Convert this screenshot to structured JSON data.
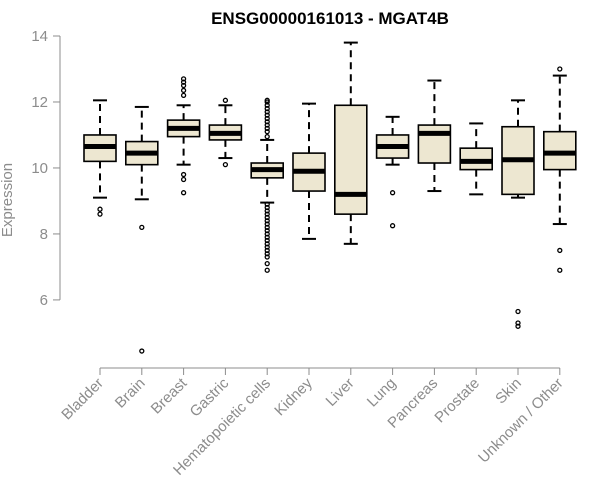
{
  "chart_data": {
    "type": "boxplot",
    "title": "ENSG00000161013 - MGAT4B",
    "xlabel": "",
    "ylabel": "Expression",
    "ylim": [
      4.3,
      14.0
    ],
    "yticks": [
      6,
      8,
      10,
      12,
      14
    ],
    "grid": false,
    "legend": "none",
    "box_fill": "#ede7d1",
    "box_stroke": "#000000",
    "categories": [
      "Bladder",
      "Brain",
      "Breast",
      "Gastric",
      "Hematopoietic cells",
      "Kidney",
      "Liver",
      "Lung",
      "Pancreas",
      "Prostate",
      "Skin",
      "Unknown / Other"
    ],
    "boxes": [
      {
        "category": "Bladder",
        "whisker_low": 9.1,
        "q1": 10.2,
        "median": 10.65,
        "q3": 11.0,
        "whisker_high": 12.05,
        "outliers": [
          8.6,
          8.75
        ]
      },
      {
        "category": "Brain",
        "whisker_low": 9.05,
        "q1": 10.1,
        "median": 10.45,
        "q3": 10.8,
        "whisker_high": 11.85,
        "outliers": [
          8.2,
          4.45
        ]
      },
      {
        "category": "Breast",
        "whisker_low": 10.1,
        "q1": 10.95,
        "median": 11.2,
        "q3": 11.45,
        "whisker_high": 11.9,
        "outliers": [
          12.2,
          12.35,
          12.5,
          12.6,
          12.7,
          9.8,
          9.65,
          9.25
        ]
      },
      {
        "category": "Gastric",
        "whisker_low": 10.3,
        "q1": 10.85,
        "median": 11.05,
        "q3": 11.3,
        "whisker_high": 11.9,
        "outliers": [
          12.05,
          10.1
        ]
      },
      {
        "category": "Hematopoietic cells",
        "whisker_low": 8.95,
        "q1": 9.7,
        "median": 9.95,
        "q3": 10.15,
        "whisker_high": 10.85,
        "outliers": [
          10.95,
          11.1,
          11.2,
          11.3,
          11.4,
          11.5,
          11.6,
          11.7,
          11.8,
          11.9,
          12.0,
          12.05,
          8.9,
          8.8,
          8.7,
          8.6,
          8.5,
          8.4,
          8.3,
          8.2,
          8.1,
          8.0,
          7.9,
          7.8,
          7.7,
          7.6,
          7.5,
          7.4,
          7.3,
          7.1,
          6.9
        ]
      },
      {
        "category": "Kidney",
        "whisker_low": 7.85,
        "q1": 9.3,
        "median": 9.9,
        "q3": 10.45,
        "whisker_high": 11.95,
        "outliers": []
      },
      {
        "category": "Liver",
        "whisker_low": 7.7,
        "q1": 8.6,
        "median": 9.2,
        "q3": 11.9,
        "whisker_high": 13.8,
        "outliers": []
      },
      {
        "category": "Lung",
        "whisker_low": 10.1,
        "q1": 10.3,
        "median": 10.65,
        "q3": 11.0,
        "whisker_high": 11.55,
        "outliers": [
          9.25,
          8.25
        ]
      },
      {
        "category": "Pancreas",
        "whisker_low": 9.3,
        "q1": 10.15,
        "median": 11.05,
        "q3": 11.3,
        "whisker_high": 12.65,
        "outliers": []
      },
      {
        "category": "Prostate",
        "whisker_low": 9.2,
        "q1": 9.95,
        "median": 10.2,
        "q3": 10.6,
        "whisker_high": 11.35,
        "outliers": []
      },
      {
        "category": "Skin",
        "whisker_low": 9.1,
        "q1": 9.2,
        "median": 10.25,
        "q3": 11.25,
        "whisker_high": 12.05,
        "outliers": [
          5.65,
          5.3,
          5.2
        ]
      },
      {
        "category": "Unknown / Other",
        "whisker_low": 8.3,
        "q1": 9.95,
        "median": 10.45,
        "q3": 11.1,
        "whisker_high": 12.8,
        "outliers": [
          13.0,
          7.5,
          6.9
        ]
      }
    ]
  }
}
